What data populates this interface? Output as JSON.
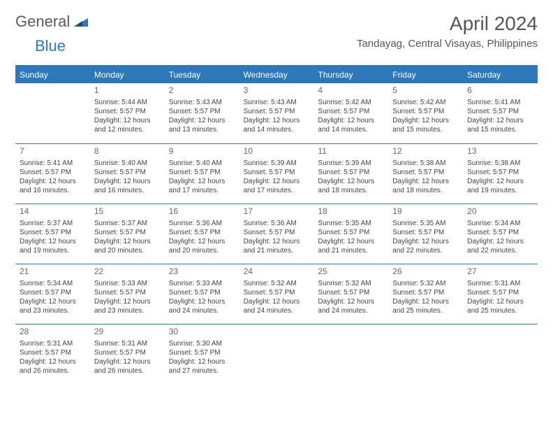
{
  "logo": {
    "text_general": "General",
    "text_blue": "Blue"
  },
  "title": "April 2024",
  "location": "Tandayag, Central Visayas, Philippines",
  "styling": {
    "header_bg": "#2e77b8",
    "header_text": "#ffffff",
    "border_color": "#2e77b8",
    "body_text": "#444444",
    "daynum_color": "#666666",
    "title_color": "#555555",
    "logo_gray": "#5a5a5a",
    "logo_blue": "#2e77b8",
    "month_title_fontsize": 28,
    "location_fontsize": 15,
    "dow_fontsize": 12,
    "cell_fontsize": 10,
    "columns": 7
  },
  "dow": [
    "Sunday",
    "Monday",
    "Tuesday",
    "Wednesday",
    "Thursday",
    "Friday",
    "Saturday"
  ],
  "weeks": [
    [
      {
        "day": "",
        "lines": [
          "",
          "",
          "",
          ""
        ]
      },
      {
        "day": "1",
        "lines": [
          "Sunrise: 5:44 AM",
          "Sunset: 5:57 PM",
          "Daylight: 12 hours",
          "and 12 minutes."
        ]
      },
      {
        "day": "2",
        "lines": [
          "Sunrise: 5:43 AM",
          "Sunset: 5:57 PM",
          "Daylight: 12 hours",
          "and 13 minutes."
        ]
      },
      {
        "day": "3",
        "lines": [
          "Sunrise: 5:43 AM",
          "Sunset: 5:57 PM",
          "Daylight: 12 hours",
          "and 14 minutes."
        ]
      },
      {
        "day": "4",
        "lines": [
          "Sunrise: 5:42 AM",
          "Sunset: 5:57 PM",
          "Daylight: 12 hours",
          "and 14 minutes."
        ]
      },
      {
        "day": "5",
        "lines": [
          "Sunrise: 5:42 AM",
          "Sunset: 5:57 PM",
          "Daylight: 12 hours",
          "and 15 minutes."
        ]
      },
      {
        "day": "6",
        "lines": [
          "Sunrise: 5:41 AM",
          "Sunset: 5:57 PM",
          "Daylight: 12 hours",
          "and 15 minutes."
        ]
      }
    ],
    [
      {
        "day": "7",
        "lines": [
          "Sunrise: 5:41 AM",
          "Sunset: 5:57 PM",
          "Daylight: 12 hours",
          "and 16 minutes."
        ]
      },
      {
        "day": "8",
        "lines": [
          "Sunrise: 5:40 AM",
          "Sunset: 5:57 PM",
          "Daylight: 12 hours",
          "and 16 minutes."
        ]
      },
      {
        "day": "9",
        "lines": [
          "Sunrise: 5:40 AM",
          "Sunset: 5:57 PM",
          "Daylight: 12 hours",
          "and 17 minutes."
        ]
      },
      {
        "day": "10",
        "lines": [
          "Sunrise: 5:39 AM",
          "Sunset: 5:57 PM",
          "Daylight: 12 hours",
          "and 17 minutes."
        ]
      },
      {
        "day": "11",
        "lines": [
          "Sunrise: 5:39 AM",
          "Sunset: 5:57 PM",
          "Daylight: 12 hours",
          "and 18 minutes."
        ]
      },
      {
        "day": "12",
        "lines": [
          "Sunrise: 5:38 AM",
          "Sunset: 5:57 PM",
          "Daylight: 12 hours",
          "and 18 minutes."
        ]
      },
      {
        "day": "13",
        "lines": [
          "Sunrise: 5:38 AM",
          "Sunset: 5:57 PM",
          "Daylight: 12 hours",
          "and 19 minutes."
        ]
      }
    ],
    [
      {
        "day": "14",
        "lines": [
          "Sunrise: 5:37 AM",
          "Sunset: 5:57 PM",
          "Daylight: 12 hours",
          "and 19 minutes."
        ]
      },
      {
        "day": "15",
        "lines": [
          "Sunrise: 5:37 AM",
          "Sunset: 5:57 PM",
          "Daylight: 12 hours",
          "and 20 minutes."
        ]
      },
      {
        "day": "16",
        "lines": [
          "Sunrise: 5:36 AM",
          "Sunset: 5:57 PM",
          "Daylight: 12 hours",
          "and 20 minutes."
        ]
      },
      {
        "day": "17",
        "lines": [
          "Sunrise: 5:36 AM",
          "Sunset: 5:57 PM",
          "Daylight: 12 hours",
          "and 21 minutes."
        ]
      },
      {
        "day": "18",
        "lines": [
          "Sunrise: 5:35 AM",
          "Sunset: 5:57 PM",
          "Daylight: 12 hours",
          "and 21 minutes."
        ]
      },
      {
        "day": "19",
        "lines": [
          "Sunrise: 5:35 AM",
          "Sunset: 5:57 PM",
          "Daylight: 12 hours",
          "and 22 minutes."
        ]
      },
      {
        "day": "20",
        "lines": [
          "Sunrise: 5:34 AM",
          "Sunset: 5:57 PM",
          "Daylight: 12 hours",
          "and 22 minutes."
        ]
      }
    ],
    [
      {
        "day": "21",
        "lines": [
          "Sunrise: 5:34 AM",
          "Sunset: 5:57 PM",
          "Daylight: 12 hours",
          "and 23 minutes."
        ]
      },
      {
        "day": "22",
        "lines": [
          "Sunrise: 5:33 AM",
          "Sunset: 5:57 PM",
          "Daylight: 12 hours",
          "and 23 minutes."
        ]
      },
      {
        "day": "23",
        "lines": [
          "Sunrise: 5:33 AM",
          "Sunset: 5:57 PM",
          "Daylight: 12 hours",
          "and 24 minutes."
        ]
      },
      {
        "day": "24",
        "lines": [
          "Sunrise: 5:32 AM",
          "Sunset: 5:57 PM",
          "Daylight: 12 hours",
          "and 24 minutes."
        ]
      },
      {
        "day": "25",
        "lines": [
          "Sunrise: 5:32 AM",
          "Sunset: 5:57 PM",
          "Daylight: 12 hours",
          "and 24 minutes."
        ]
      },
      {
        "day": "26",
        "lines": [
          "Sunrise: 5:32 AM",
          "Sunset: 5:57 PM",
          "Daylight: 12 hours",
          "and 25 minutes."
        ]
      },
      {
        "day": "27",
        "lines": [
          "Sunrise: 5:31 AM",
          "Sunset: 5:57 PM",
          "Daylight: 12 hours",
          "and 25 minutes."
        ]
      }
    ],
    [
      {
        "day": "28",
        "lines": [
          "Sunrise: 5:31 AM",
          "Sunset: 5:57 PM",
          "Daylight: 12 hours",
          "and 26 minutes."
        ]
      },
      {
        "day": "29",
        "lines": [
          "Sunrise: 5:31 AM",
          "Sunset: 5:57 PM",
          "Daylight: 12 hours",
          "and 26 minutes."
        ]
      },
      {
        "day": "30",
        "lines": [
          "Sunrise: 5:30 AM",
          "Sunset: 5:57 PM",
          "Daylight: 12 hours",
          "and 27 minutes."
        ]
      },
      {
        "day": "",
        "lines": [
          "",
          "",
          "",
          ""
        ]
      },
      {
        "day": "",
        "lines": [
          "",
          "",
          "",
          ""
        ]
      },
      {
        "day": "",
        "lines": [
          "",
          "",
          "",
          ""
        ]
      },
      {
        "day": "",
        "lines": [
          "",
          "",
          "",
          ""
        ]
      }
    ]
  ]
}
